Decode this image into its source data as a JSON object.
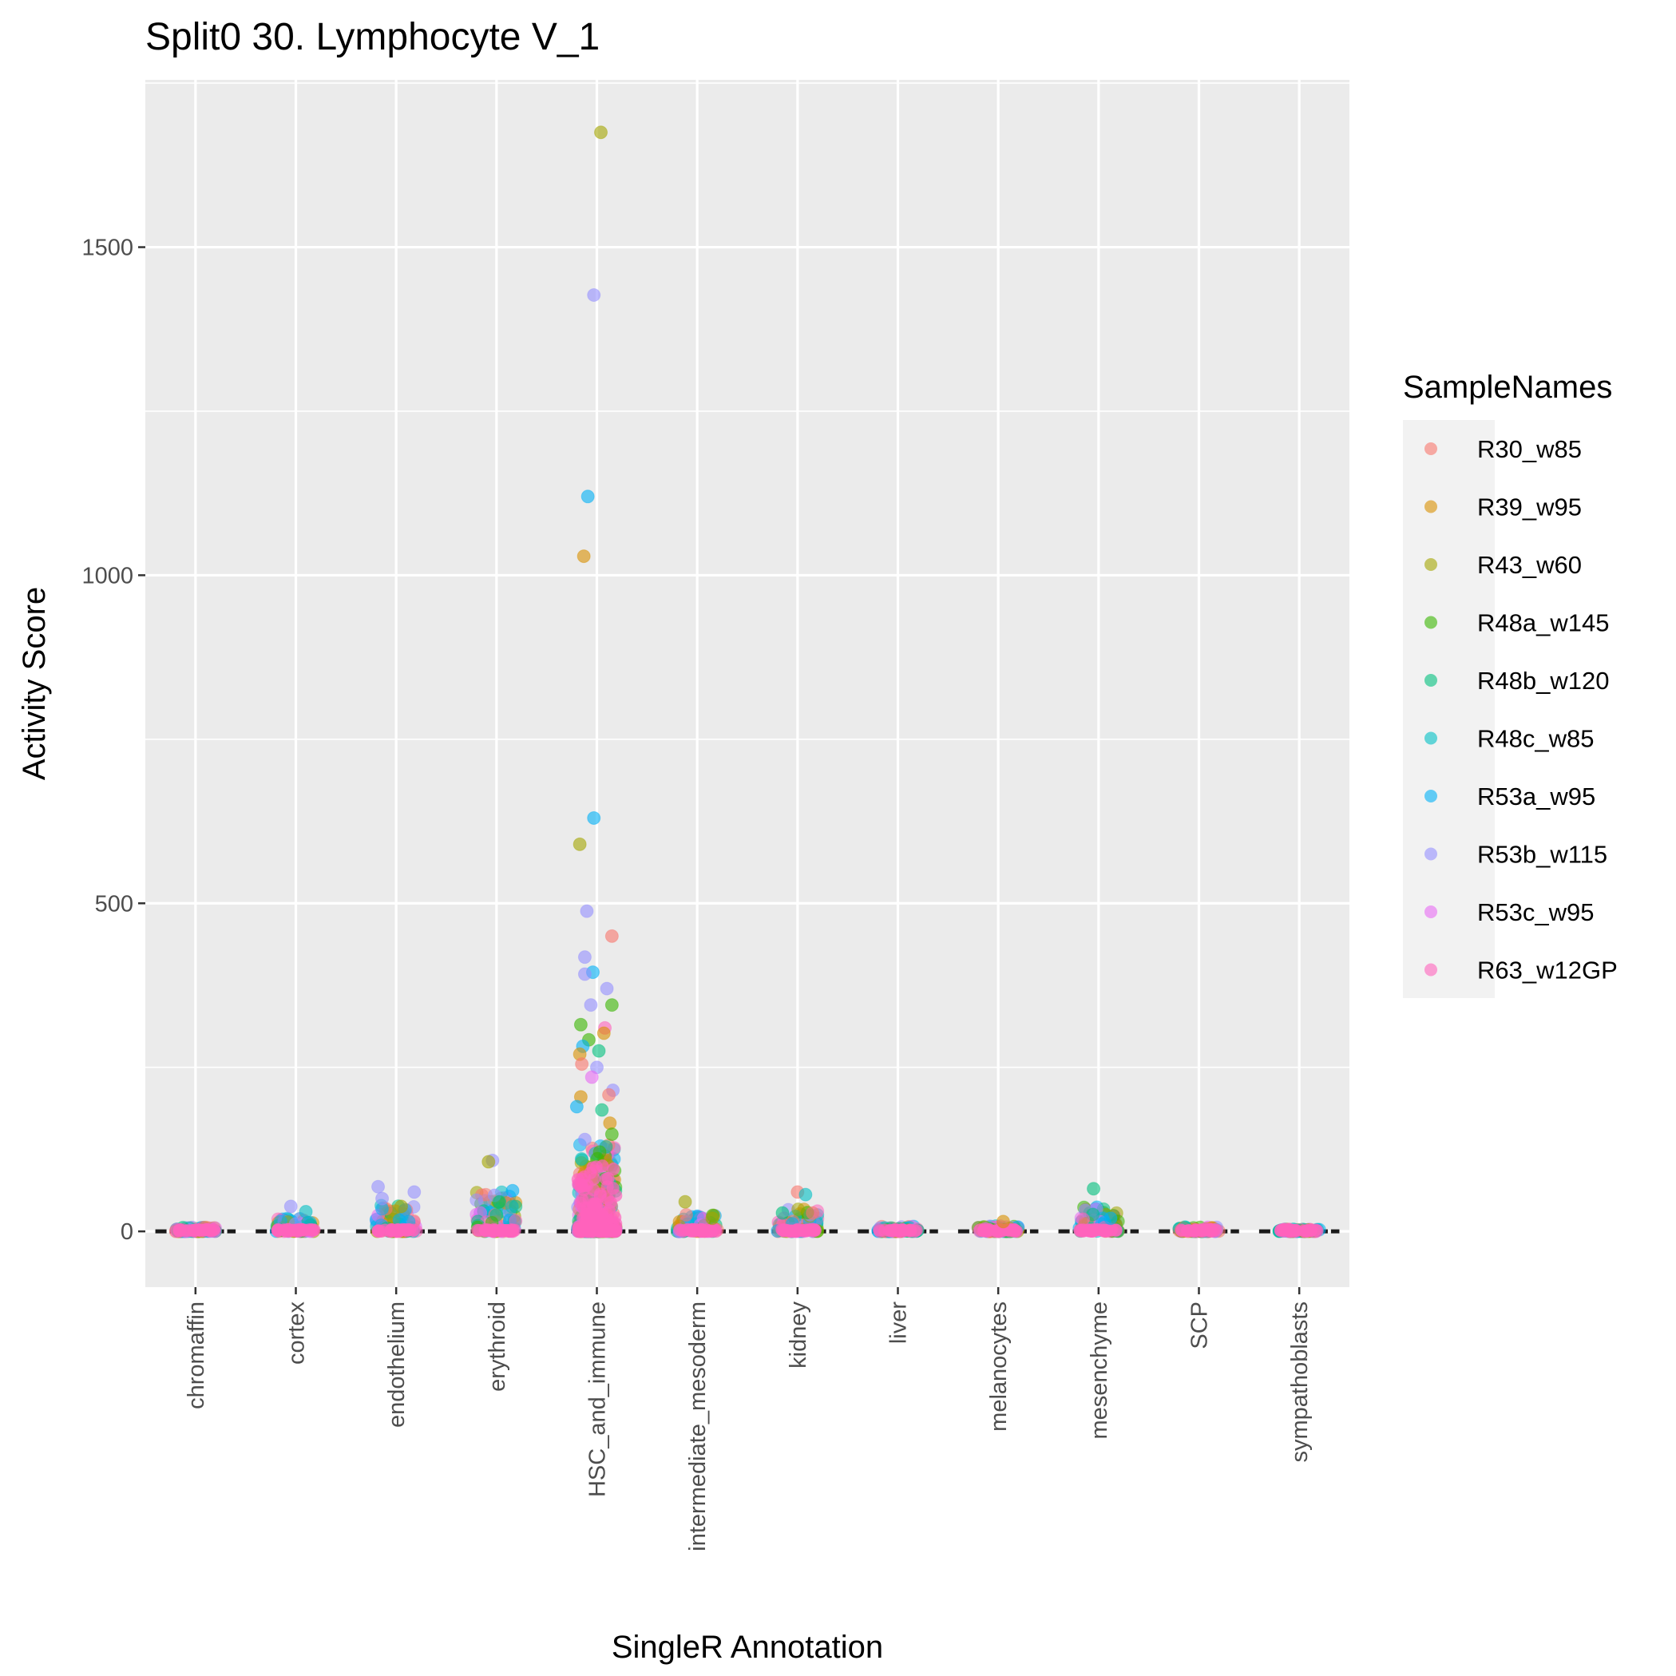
{
  "chart_data": {
    "type": "scatter",
    "title": "Split0 30. Lymphocyte V_1",
    "xlabel": "SingleR Annotation",
    "ylabel": "Activity Score",
    "categories": [
      "chromaffin",
      "cortex",
      "endothelium",
      "erythroid",
      "HSC_and_immune",
      "intermediate_mesoderm",
      "kidney",
      "liver",
      "melanocytes",
      "mesenchyme",
      "SCP",
      "sympathoblasts"
    ],
    "yticks": [
      0,
      500,
      1000,
      1500
    ],
    "ylim": [
      -85,
      1755
    ],
    "grid": true,
    "legend": {
      "title": "SampleNames",
      "position": "right",
      "entries": [
        {
          "name": "R30_w85",
          "color": "#F8766D"
        },
        {
          "name": "R39_w95",
          "color": "#D89000"
        },
        {
          "name": "R43_w60",
          "color": "#A3A500"
        },
        {
          "name": "R48a_w145",
          "color": "#39B600"
        },
        {
          "name": "R48b_w120",
          "color": "#00BF7D"
        },
        {
          "name": "R48c_w85",
          "color": "#00BFC4"
        },
        {
          "name": "R53a_w95",
          "color": "#00B0F6"
        },
        {
          "name": "R53b_w115",
          "color": "#9590FF"
        },
        {
          "name": "R53c_w95",
          "color": "#E76BF3"
        },
        {
          "name": "R63_w12GP",
          "color": "#FF62BC"
        }
      ]
    },
    "max_scores": [
      12,
      38,
      72,
      112,
      1675,
      48,
      62,
      14,
      15,
      68,
      12,
      6
    ],
    "outliers": [
      {
        "category": "HSC_and_immune",
        "dx": 0.04,
        "y": 1675,
        "sample": "R43_w60"
      },
      {
        "category": "HSC_and_immune",
        "dx": -0.03,
        "y": 1427,
        "sample": "R53b_w115"
      },
      {
        "category": "HSC_and_immune",
        "dx": -0.09,
        "y": 1120,
        "sample": "R53a_w95"
      },
      {
        "category": "HSC_and_immune",
        "dx": -0.13,
        "y": 1029,
        "sample": "R39_w95"
      },
      {
        "category": "HSC_and_immune",
        "dx": -0.03,
        "y": 630,
        "sample": "R53a_w95"
      },
      {
        "category": "HSC_and_immune",
        "dx": -0.17,
        "y": 590,
        "sample": "R43_w60"
      },
      {
        "category": "HSC_and_immune",
        "dx": -0.1,
        "y": 488,
        "sample": "R53b_w115"
      },
      {
        "category": "HSC_and_immune",
        "dx": 0.15,
        "y": 450,
        "sample": "R30_w85"
      },
      {
        "category": "HSC_and_immune",
        "dx": -0.12,
        "y": 418,
        "sample": "R53b_w115"
      },
      {
        "category": "HSC_and_immune",
        "dx": -0.04,
        "y": 395,
        "sample": "R53a_w95"
      },
      {
        "category": "HSC_and_immune",
        "dx": -0.12,
        "y": 392,
        "sample": "R53b_w115"
      },
      {
        "category": "HSC_and_immune",
        "dx": 0.1,
        "y": 370,
        "sample": "R53b_w115"
      },
      {
        "category": "HSC_and_immune",
        "dx": 0.15,
        "y": 345,
        "sample": "R48a_w145"
      },
      {
        "category": "HSC_and_immune",
        "dx": -0.06,
        "y": 345,
        "sample": "R53b_w115"
      },
      {
        "category": "HSC_and_immune",
        "dx": -0.16,
        "y": 315,
        "sample": "R48a_w145"
      },
      {
        "category": "HSC_and_immune",
        "dx": 0.08,
        "y": 310,
        "sample": "R63_w12GP"
      },
      {
        "category": "HSC_and_immune",
        "dx": 0.07,
        "y": 302,
        "sample": "R39_w95"
      },
      {
        "category": "HSC_and_immune",
        "dx": -0.08,
        "y": 292,
        "sample": "R48a_w145"
      },
      {
        "category": "HSC_and_immune",
        "dx": -0.14,
        "y": 282,
        "sample": "R53a_w95"
      },
      {
        "category": "HSC_and_immune",
        "dx": 0.02,
        "y": 275,
        "sample": "R48b_w120"
      },
      {
        "category": "HSC_and_immune",
        "dx": -0.17,
        "y": 270,
        "sample": "R39_w95"
      },
      {
        "category": "HSC_and_immune",
        "dx": -0.15,
        "y": 255,
        "sample": "R30_w85"
      },
      {
        "category": "HSC_and_immune",
        "dx": 0.0,
        "y": 250,
        "sample": "R53b_w115"
      },
      {
        "category": "HSC_and_immune",
        "dx": -0.05,
        "y": 235,
        "sample": "R53c_w95"
      },
      {
        "category": "HSC_and_immune",
        "dx": 0.16,
        "y": 215,
        "sample": "R53b_w115"
      },
      {
        "category": "HSC_and_immune",
        "dx": 0.12,
        "y": 208,
        "sample": "R30_w85"
      },
      {
        "category": "HSC_and_immune",
        "dx": -0.16,
        "y": 205,
        "sample": "R39_w95"
      },
      {
        "category": "HSC_and_immune",
        "dx": -0.2,
        "y": 190,
        "sample": "R53a_w95"
      },
      {
        "category": "HSC_and_immune",
        "dx": 0.05,
        "y": 185,
        "sample": "R48b_w120"
      },
      {
        "category": "HSC_and_immune",
        "dx": 0.13,
        "y": 165,
        "sample": "R39_w95"
      },
      {
        "category": "HSC_and_immune",
        "dx": 0.15,
        "y": 148,
        "sample": "R48a_w145"
      },
      {
        "category": "HSC_and_immune",
        "dx": -0.12,
        "y": 140,
        "sample": "R53b_w115"
      },
      {
        "category": "endothelium",
        "dx": -0.18,
        "y": 68,
        "sample": "R53b_w115"
      },
      {
        "category": "endothelium",
        "dx": 0.18,
        "y": 60,
        "sample": "R53b_w115"
      },
      {
        "category": "endothelium",
        "dx": -0.14,
        "y": 50,
        "sample": "R53b_w115"
      },
      {
        "category": "endothelium",
        "dx": 0.05,
        "y": 38,
        "sample": "R43_w60"
      },
      {
        "category": "cortex",
        "dx": -0.05,
        "y": 38,
        "sample": "R53b_w115"
      },
      {
        "category": "cortex",
        "dx": 0.1,
        "y": 30,
        "sample": "R48c_w85"
      },
      {
        "category": "erythroid",
        "dx": -0.04,
        "y": 108,
        "sample": "R53b_w115"
      },
      {
        "category": "erythroid",
        "dx": -0.08,
        "y": 106,
        "sample": "R43_w60"
      },
      {
        "category": "erythroid",
        "dx": 0.16,
        "y": 62,
        "sample": "R53a_w95"
      },
      {
        "category": "erythroid",
        "dx": -0.02,
        "y": 55,
        "sample": "R53b_w115"
      },
      {
        "category": "erythroid",
        "dx": 0.03,
        "y": 45,
        "sample": "R48b_w120"
      },
      {
        "category": "intermediate_mesoderm",
        "dx": -0.12,
        "y": 45,
        "sample": "R43_w60"
      },
      {
        "category": "intermediate_mesoderm",
        "dx": 0.15,
        "y": 20,
        "sample": "R43_w60"
      },
      {
        "category": "kidney",
        "dx": 0.0,
        "y": 60,
        "sample": "R30_w85"
      },
      {
        "category": "kidney",
        "dx": 0.08,
        "y": 56,
        "sample": "R48c_w85"
      },
      {
        "category": "kidney",
        "dx": 0.15,
        "y": 28,
        "sample": "R30_w85"
      },
      {
        "category": "kidney",
        "dx": -0.15,
        "y": 28,
        "sample": "R48b_w120"
      },
      {
        "category": "mesenchyme",
        "dx": -0.05,
        "y": 65,
        "sample": "R48b_w120"
      },
      {
        "category": "mesenchyme",
        "dx": 0.12,
        "y": 20,
        "sample": "R53a_w95"
      },
      {
        "category": "melanocytes",
        "dx": 0.05,
        "y": 15,
        "sample": "R39_w95"
      }
    ]
  }
}
